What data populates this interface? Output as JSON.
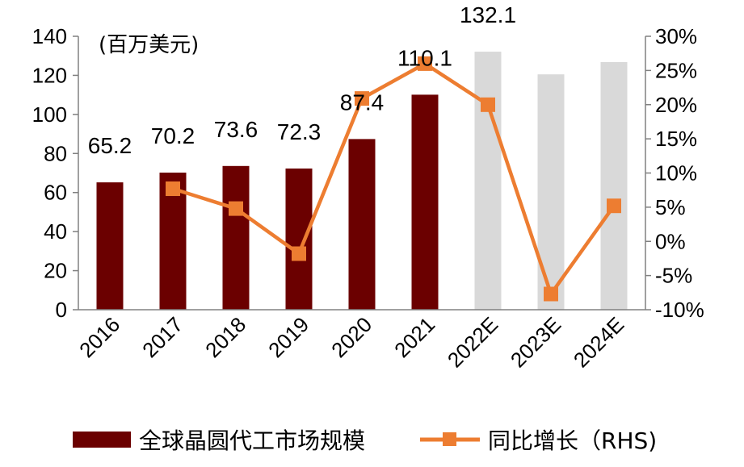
{
  "chart_data": {
    "type": "bar+line",
    "unit_label": "(百万美元)",
    "categories": [
      "2016",
      "2017",
      "2018",
      "2019",
      "2020",
      "2021",
      "2022E",
      "2023E",
      "2024E"
    ],
    "series": [
      {
        "name": "全球晶圆代工市场规模",
        "type": "bar",
        "axis": "left",
        "values": [
          65.2,
          70.2,
          73.6,
          72.3,
          87.4,
          110.1,
          132.1,
          120.5,
          126.8
        ],
        "labels": [
          "65.2",
          "70.2",
          "73.6",
          "72.3",
          "87.4",
          "110.1",
          "132.1",
          null,
          null
        ],
        "estimated": [
          false,
          false,
          false,
          false,
          false,
          false,
          true,
          true,
          true
        ]
      },
      {
        "name": "同比增长（RHS)",
        "type": "line",
        "axis": "right",
        "values": [
          null,
          7.7,
          4.8,
          -1.8,
          20.9,
          26.0,
          20.0,
          -7.7,
          5.2
        ]
      }
    ],
    "y_left": {
      "min": 0,
      "max": 140,
      "ticks": [
        "0",
        "20",
        "40",
        "60",
        "80",
        "100",
        "120",
        "140"
      ]
    },
    "y_right": {
      "min": -10,
      "max": 30,
      "ticks": [
        "-10%",
        "-5%",
        "0%",
        "5%",
        "10%",
        "15%",
        "20%",
        "25%",
        "30%"
      ]
    },
    "colors": {
      "bar": "#6b0000",
      "bar_estimate": "#d9d9d9",
      "line": "#ed7d31",
      "axis": "#808080"
    },
    "legend": {
      "position": "bottom"
    }
  }
}
